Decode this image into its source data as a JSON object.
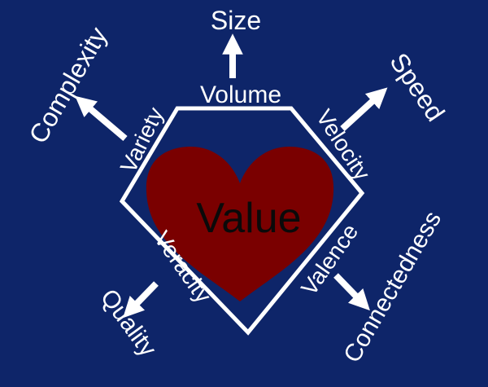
{
  "colors": {
    "background": "#0e2569",
    "foreground": "#ffffff",
    "heart": "#7a0000",
    "heart_text": "#0a0a0a"
  },
  "center": {
    "label": "Value"
  },
  "dimensions": [
    {
      "side": "top",
      "v_label": "Volume",
      "outcome": "Size"
    },
    {
      "side": "upper-left",
      "v_label": "Variety",
      "outcome": "Complexity"
    },
    {
      "side": "upper-right",
      "v_label": "Velocity",
      "outcome": "Speed"
    },
    {
      "side": "lower-left",
      "v_label": "Veracity",
      "outcome": "Quality"
    },
    {
      "side": "lower-right",
      "v_label": "Valence",
      "outcome": "Connectedness"
    }
  ],
  "icons": [
    "heart-icon",
    "arrow-icon"
  ]
}
